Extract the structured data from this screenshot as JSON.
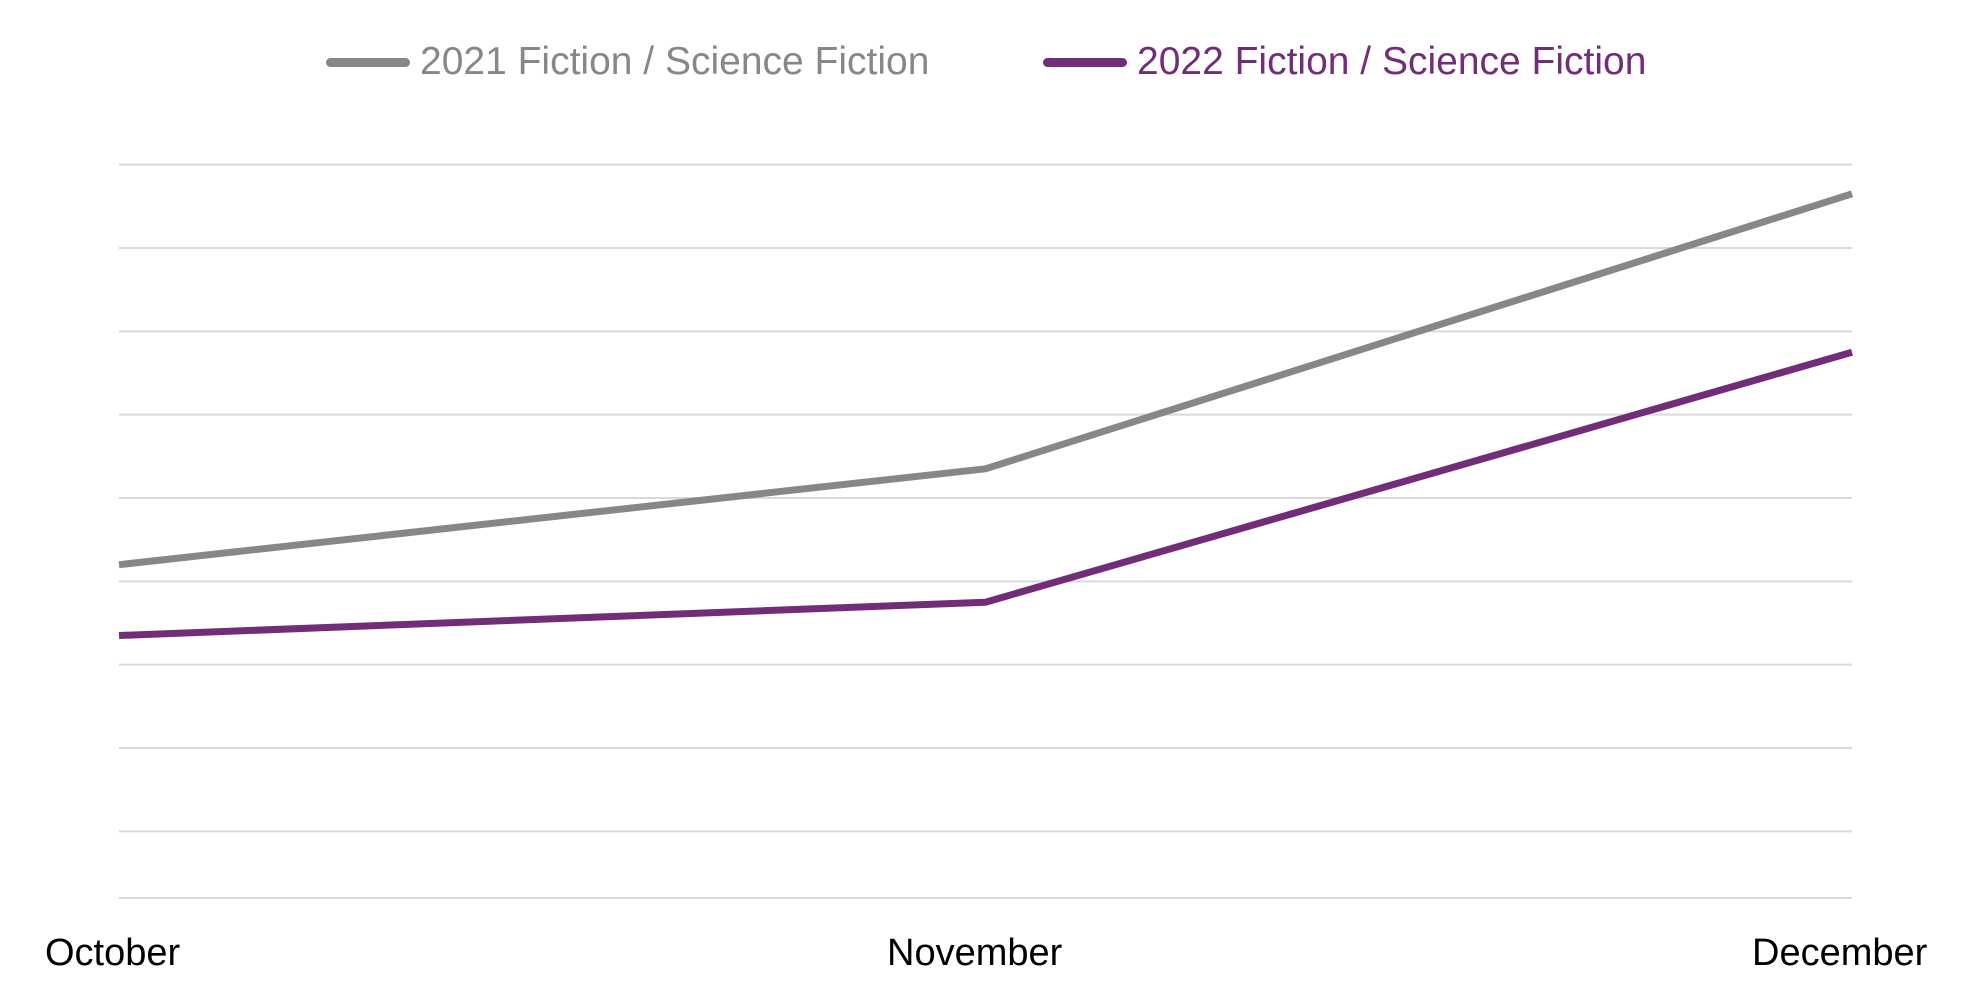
{
  "chart_data": {
    "type": "line",
    "categories": [
      "October",
      "November",
      "December"
    ],
    "series": [
      {
        "name": "2021 Fiction / Science Fiction",
        "color": "#878787",
        "values": [
          3.2,
          4.35,
          7.65
        ]
      },
      {
        "name": "2022 Fiction / Science Fiction",
        "color": "#722d78",
        "values": [
          2.35,
          2.75,
          5.75
        ]
      }
    ],
    "ylim": [
      -0.8,
      8.2
    ],
    "grid": true,
    "legend_position": "top"
  }
}
